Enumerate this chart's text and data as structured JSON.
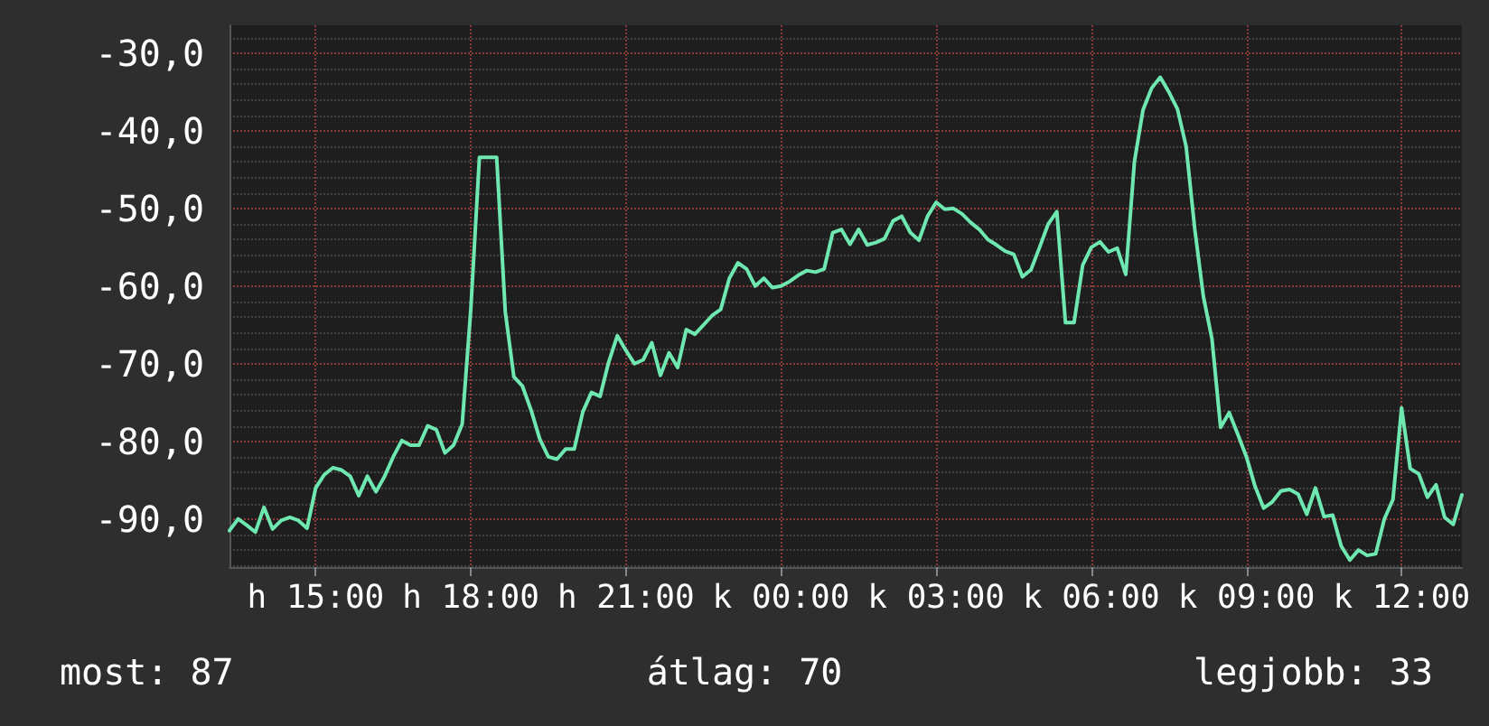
{
  "chart_data": {
    "type": "line",
    "color": "#6ee8b0",
    "grid": true,
    "marker": "none",
    "line_style": "solid",
    "categories": [
      null,
      null,
      null,
      null,
      null,
      null,
      null,
      null,
      null,
      null,
      "h 15:00",
      null,
      null,
      null,
      null,
      null,
      null,
      null,
      null,
      null,
      null,
      null,
      null,
      null,
      null,
      null,
      null,
      null,
      "h 18:00",
      null,
      null,
      null,
      null,
      null,
      null,
      null,
      null,
      null,
      null,
      null,
      null,
      null,
      null,
      null,
      null,
      null,
      "h 21:00",
      null,
      null,
      null,
      null,
      null,
      null,
      null,
      null,
      null,
      null,
      null,
      null,
      null,
      null,
      null,
      null,
      null,
      "k 00:00",
      null,
      null,
      null,
      null,
      null,
      null,
      null,
      null,
      null,
      null,
      null,
      null,
      null,
      null,
      null,
      null,
      null,
      "k 03:00",
      null,
      null,
      null,
      null,
      null,
      null,
      null,
      null,
      null,
      null,
      null,
      null,
      null,
      null,
      null,
      null,
      null,
      "k 06:00",
      null,
      null,
      null,
      null,
      null,
      null,
      null,
      null,
      null,
      null,
      null,
      null,
      null,
      null,
      null,
      null,
      null,
      "k 09:00",
      null,
      null,
      null,
      null,
      null,
      null,
      null,
      null,
      null,
      null,
      null,
      null,
      null,
      null,
      null,
      null,
      null,
      "k 12:00",
      null,
      null,
      null,
      null,
      null,
      null,
      null
    ],
    "values": [
      -91.5,
      -90,
      -90.8,
      -91.7,
      -88.5,
      -91.3,
      -90.2,
      -89.8,
      -90.2,
      -91.2,
      -86,
      -84.3,
      -83.4,
      -83.7,
      -84.5,
      -87,
      -84.5,
      -86.5,
      -84.5,
      -82,
      -79.9,
      -80.5,
      -80.5,
      -78,
      -78.5,
      -81.5,
      -80.5,
      -77.8,
      -63,
      -43.4,
      -43.4,
      -43.4,
      -63.3,
      -71.7,
      -72.9,
      -76,
      -79.7,
      -82,
      -82.3,
      -81,
      -81,
      -76.2,
      -73.7,
      -74.2,
      -69.8,
      -66.4,
      -68.3,
      -70,
      -69.5,
      -67.3,
      -71.5,
      -68.6,
      -70.5,
      -65.6,
      -66.2,
      -65,
      -63.8,
      -63,
      -59,
      -57,
      -57.8,
      -60,
      -59,
      -60.2,
      -60,
      -59.4,
      -58.6,
      -58,
      -58.2,
      -57.8,
      -53.1,
      -52.7,
      -54.6,
      -52.7,
      -54.7,
      -54.4,
      -53.9,
      -51.6,
      -51,
      -53.1,
      -54.1,
      -51,
      -49.2,
      -50.1,
      -50,
      -50.7,
      -51.8,
      -52.7,
      -54,
      -54.7,
      -55.5,
      -55.9,
      -58.8,
      -57.9,
      -55,
      -52,
      -50.4,
      -64.7,
      -64.7,
      -57.3,
      -55,
      -54.3,
      -55.6,
      -55.1,
      -58.5,
      -44,
      -37.3,
      -34.5,
      -33.1,
      -35,
      -37.2,
      -42,
      -52.6,
      -61.3,
      -66.8,
      -78.2,
      -76.3,
      -79.1,
      -82,
      -85.8,
      -88.6,
      -87.8,
      -86.4,
      -86.2,
      -86.8,
      -89.4,
      -86,
      -89.7,
      -89.5,
      -93.5,
      -95.3,
      -94,
      -94.7,
      -94.5,
      -90,
      -87.5,
      -75.7,
      -83.5,
      -84.2,
      -87.2,
      -85.6,
      -89.8,
      -90.7,
      -86.9
    ],
    "ylim": [
      -96.2,
      -26.4
    ],
    "yticks": [
      {
        "value": -90,
        "label": "-90,0"
      },
      {
        "value": -80,
        "label": "-80,0"
      },
      {
        "value": -70,
        "label": "-70,0"
      },
      {
        "value": -60,
        "label": "-60,0"
      },
      {
        "value": -50,
        "label": "-50,0"
      },
      {
        "value": -40,
        "label": "-40,0"
      },
      {
        "value": -30,
        "label": "-30,0"
      }
    ],
    "annotations": [
      "most: 87",
      "átlag: 70",
      "legjobb: 33"
    ]
  }
}
